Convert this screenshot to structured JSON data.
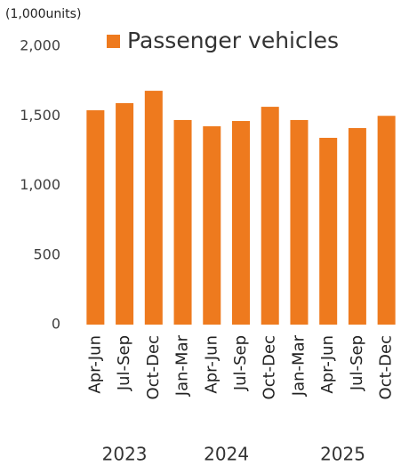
{
  "chart_data": {
    "type": "bar",
    "unit_label": "(1,000units)",
    "categories": [
      "Apr-Jun",
      "Jul-Sep",
      "Oct-Dec",
      "Jan-Mar",
      "Apr-Jun",
      "Jul-Sep",
      "Oct-Dec",
      "Jan-Mar",
      "Apr-Jun",
      "Jul-Sep",
      "Oct-Dec"
    ],
    "groups": [
      {
        "label": "2023",
        "count": 3
      },
      {
        "label": "2024",
        "count": 4
      },
      {
        "label": "2025",
        "count": 4
      }
    ],
    "series": [
      {
        "name": "Passenger vehicles",
        "color": "#ee7a1e",
        "values": [
          1540,
          1591,
          1680,
          1470,
          1425,
          1463,
          1565,
          1470,
          1342,
          1412,
          1500
        ]
      }
    ],
    "ylim": [
      0,
      2000
    ],
    "yticks": [
      0,
      500,
      {
        "value": 1000,
        "label": "1,000"
      },
      {
        "value": 1500,
        "label": "1,500"
      },
      {
        "value": 2000,
        "label": "2,000"
      }
    ],
    "grid": false
  }
}
